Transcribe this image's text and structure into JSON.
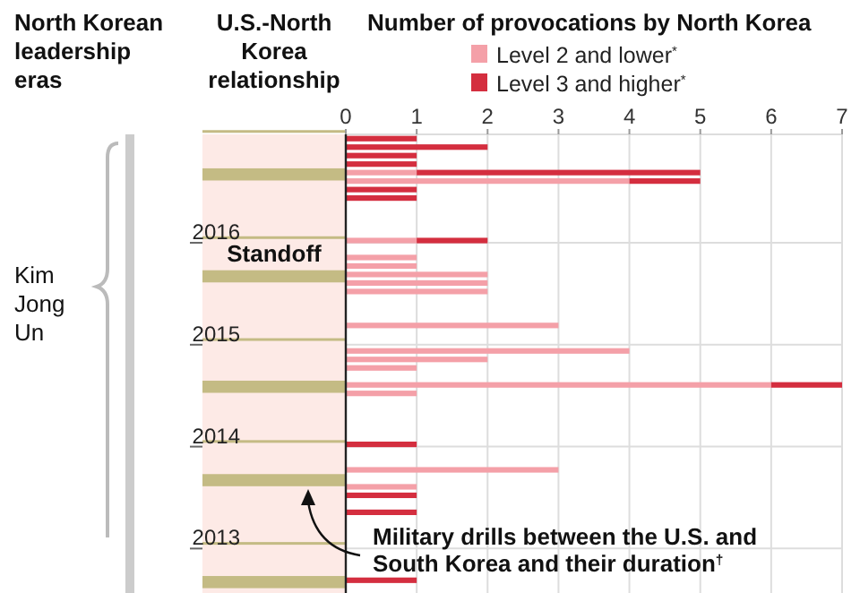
{
  "chart_data": {
    "type": "bar",
    "orientation": "horizontal",
    "stacked": true,
    "title": "Number of provocations by North Korea",
    "annotations": [
      "North Korean leadership eras",
      "U.S.-North Korea relationship",
      "Kim Jong Un",
      "Standoff",
      "Military drills between the U.S. and South Korea and their duration$^{†}$"
    ],
    "categories": [
      null,
      null,
      null,
      null,
      null,
      null,
      null,
      null,
      null,
      null,
      null,
      "2016",
      null,
      null,
      null,
      null,
      null,
      null,
      null,
      null,
      null,
      null,
      null,
      "2015",
      null,
      null,
      null,
      null,
      null,
      null,
      null,
      null,
      null,
      null,
      null,
      "2014",
      null,
      null,
      null,
      null,
      null,
      null,
      null,
      null,
      null,
      null,
      null,
      "2013",
      null,
      null,
      null,
      null,
      null,
      null
    ],
    "series": [
      {
        "name": "Level 2 and lower$^{*}$",
        "color": "#f4a0a8",
        "values": [
          null,
          null,
          null,
          null,
          1,
          4,
          null,
          null,
          null,
          null,
          null,
          null,
          1,
          null,
          1,
          1,
          2,
          2,
          2,
          null,
          null,
          null,
          3,
          null,
          null,
          4,
          2,
          1,
          null,
          6,
          1,
          null,
          null,
          null,
          null,
          null,
          null,
          null,
          null,
          3,
          null,
          1,
          null,
          null,
          null,
          null,
          null,
          null,
          null,
          null,
          null,
          null,
          null,
          null
        ]
      },
      {
        "name": "Level 3 and higher$^{*}$",
        "color": "#d42e3f",
        "values": [
          1,
          2,
          1,
          1,
          4,
          1,
          1,
          1,
          null,
          null,
          null,
          null,
          1,
          null,
          null,
          null,
          null,
          null,
          null,
          null,
          null,
          null,
          null,
          null,
          null,
          null,
          null,
          null,
          null,
          1,
          null,
          null,
          null,
          null,
          null,
          null,
          1,
          null,
          null,
          null,
          null,
          null,
          1,
          null,
          1,
          null,
          null,
          null,
          null,
          null,
          null,
          null,
          1,
          null
        ]
      }
    ],
    "xlim": [
      0,
      7
    ],
    "xticks": [
      0,
      1,
      2,
      3,
      4,
      5,
      6,
      7
    ],
    "grid": true,
    "legend": "top"
  }
}
